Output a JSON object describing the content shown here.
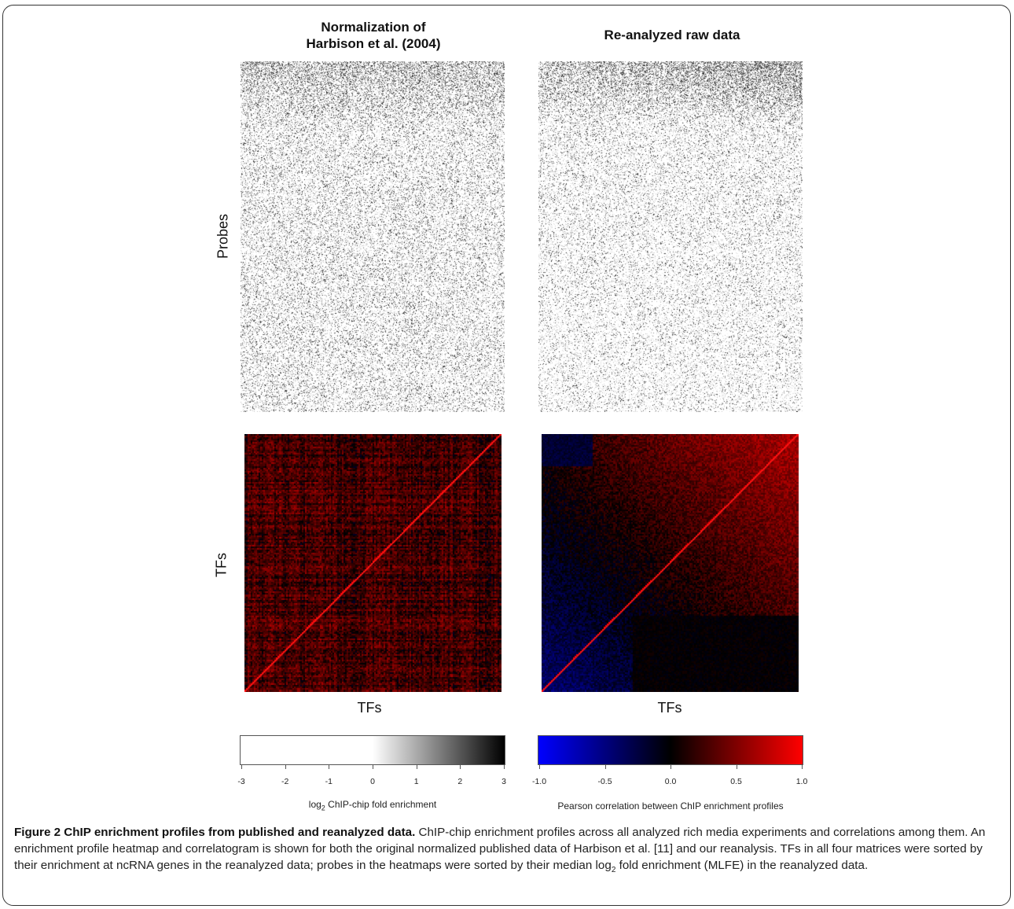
{
  "figure": {
    "col_titles": [
      "Normalization of\nHarbison et al. (2004)",
      "Re-analyzed raw data"
    ],
    "row_labels": {
      "top": "Probes",
      "bottom": "TFs"
    },
    "x_label": "TFs",
    "colors": {
      "heatmap_low": "#ffffff",
      "heatmap_high": "#000000",
      "corr_neg": "#0000ff",
      "corr_zero": "#000000",
      "corr_pos": "#ff0000",
      "frame": "#333333"
    }
  },
  "chart_data": [
    {
      "type": "heatmap",
      "panel": "top-left",
      "title": "Normalization of Harbison et al. (2004)",
      "ylabel": "Probes",
      "colorscale": "grayscale",
      "value_label": "log2 ChIP-chip fold enrichment",
      "range": [
        -3,
        3
      ]
    },
    {
      "type": "heatmap",
      "panel": "top-right",
      "title": "Re-analyzed raw data",
      "colorscale": "grayscale",
      "value_label": "log2 ChIP-chip fold enrichment",
      "range": [
        -3,
        3
      ]
    },
    {
      "type": "heatmap",
      "panel": "bottom-left",
      "xlabel": "TFs",
      "ylabel": "TFs",
      "colorscale": "blue-black-red",
      "value_label": "Pearson correlation between ChIP enrichment profiles",
      "range": [
        -1.0,
        1.0
      ]
    },
    {
      "type": "heatmap",
      "panel": "bottom-right",
      "xlabel": "TFs",
      "colorscale": "blue-black-red",
      "value_label": "Pearson correlation between ChIP enrichment profiles",
      "range": [
        -1.0,
        1.0
      ]
    }
  ],
  "colorbars": {
    "gray": {
      "ticks": [
        "-3",
        "-2",
        "-1",
        "0",
        "1",
        "2",
        "3"
      ],
      "title_main": "log",
      "title_sub": "2",
      "title_rest": " ChIP-chip fold enrichment"
    },
    "corr": {
      "ticks": [
        "-1.0",
        "-0.5",
        "0.0",
        "0.5",
        "1.0"
      ],
      "title": "Pearson correlation between ChIP enrichment profiles"
    }
  },
  "caption": {
    "label": "Figure 2 ChIP enrichment profiles from published and reanalyzed data.",
    "text_1": " ChIP-chip enrichment profiles across all analyzed rich media experiments and correlations among them. An enrichment profile heatmap and correlatogram is shown for both the original normalized published data of Harbison et al. [11] and our reanalysis. TFs in all four matrices were sorted by their enrichment at ncRNA genes in the reanalyzed data; probes in the heatmaps were sorted by their median log",
    "sub": "2",
    "text_2": " fold enrichment (MLFE) in the reanalyzed data."
  }
}
